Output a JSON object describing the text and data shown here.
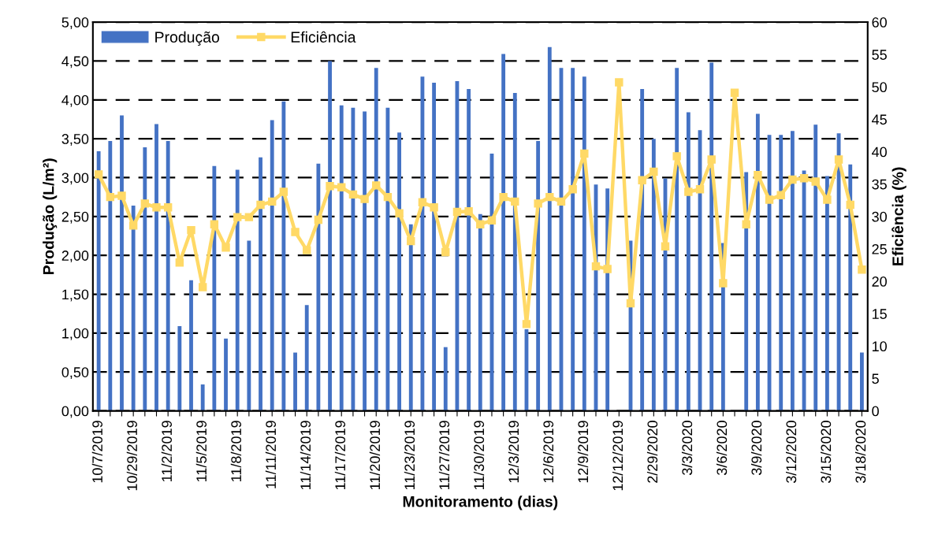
{
  "chart_data": {
    "type": "bar",
    "xlabel": "Monitoramento (dias)",
    "ylabel": "Produção (L/m²)",
    "y2label": "Eficiência (%)",
    "categories": [
      "10/7/2019",
      null,
      null,
      "10/29/2019",
      null,
      null,
      "11/2/2019",
      null,
      null,
      "11/5/2019",
      null,
      null,
      "11/8/2019",
      null,
      null,
      "11/11/2019",
      null,
      null,
      "11/14/2019",
      null,
      null,
      "11/17/2019",
      null,
      null,
      "11/20/2019",
      null,
      null,
      "11/23/2019",
      null,
      null,
      "11/27/2019",
      null,
      null,
      "11/30/2019",
      null,
      null,
      "12/3/2019",
      null,
      null,
      "12/6/2019",
      null,
      null,
      "12/9/2019",
      null,
      null,
      "12/12/2019",
      null,
      null,
      "2/29/2020",
      null,
      null,
      "3/3/2020",
      null,
      null,
      "3/6/2020",
      null,
      null,
      "3/9/2020",
      null,
      null,
      "3/12/2020",
      null,
      null,
      "3/15/2020",
      null,
      null,
      "3/18/2020"
    ],
    "series": [
      {
        "name": "Produção",
        "color": "#4472c4",
        "values": [
          3.34,
          3.47,
          3.8,
          2.64,
          3.39,
          3.69,
          3.47,
          1.09,
          1.68,
          0.34,
          3.15,
          0.93,
          3.1,
          2.19,
          3.26,
          3.74,
          3.98,
          0.75,
          1.36,
          3.18,
          4.5,
          3.93,
          3.9,
          3.85,
          4.41,
          3.9,
          3.58,
          2.4,
          4.3,
          4.22,
          0.82,
          4.24,
          4.14,
          2.53,
          3.31,
          4.59,
          4.09,
          1.05,
          3.47,
          4.68,
          4.41,
          4.41,
          4.3,
          2.91,
          2.86,
          null,
          2.19,
          4.14,
          3.5,
          2.99,
          4.41,
          3.84,
          3.61,
          4.48,
          2.16,
          null,
          3.07,
          3.82,
          3.55,
          3.55,
          3.6,
          3.09,
          3.68,
          3.02,
          3.57,
          3.17,
          0.75
        ]
      },
      {
        "name": "Eficiência",
        "type": "line",
        "axis": "y2",
        "color": "#ffd966",
        "marker": "square",
        "line_style": "solid",
        "values": [
          36.5,
          33.0,
          33.2,
          28.6,
          32.0,
          31.4,
          31.4,
          22.9,
          27.9,
          19.1,
          28.8,
          25.2,
          29.9,
          29.9,
          31.8,
          32.3,
          33.8,
          27.6,
          24.8,
          29.5,
          34.7,
          34.5,
          33.4,
          32.7,
          34.8,
          33.0,
          30.5,
          26.2,
          32.2,
          31.4,
          24.5,
          30.7,
          30.8,
          28.8,
          29.4,
          33.0,
          32.3,
          13.4,
          32.0,
          33.0,
          32.3,
          34.2,
          39.7,
          22.3,
          21.9,
          50.7,
          16.6,
          35.6,
          36.9,
          25.4,
          39.3,
          33.8,
          34.2,
          38.8,
          19.7,
          49.1,
          28.8,
          36.4,
          32.6,
          33.3,
          35.7,
          35.9,
          35.4,
          32.6,
          38.8,
          31.8,
          21.8
        ]
      }
    ],
    "ylim": [
      0,
      5
    ],
    "yticks": [
      {
        "value": 0,
        "label": "0,00"
      },
      {
        "value": 0.5,
        "label": "0,50"
      },
      {
        "value": 1,
        "label": "1,00"
      },
      {
        "value": 1.5,
        "label": "1,50"
      },
      {
        "value": 2,
        "label": "2,00"
      },
      {
        "value": 2.5,
        "label": "2,50"
      },
      {
        "value": 3,
        "label": "3,00"
      },
      {
        "value": 3.5,
        "label": "3,50"
      },
      {
        "value": 4,
        "label": "4,00"
      },
      {
        "value": 4.5,
        "label": "4,50"
      },
      {
        "value": 5,
        "label": "5,00"
      }
    ],
    "y2lim": [
      0,
      60
    ],
    "y2ticks": [
      0,
      5,
      10,
      15,
      20,
      25,
      30,
      35,
      40,
      45,
      50,
      55,
      60
    ],
    "grid": "y",
    "legend": "top left"
  }
}
